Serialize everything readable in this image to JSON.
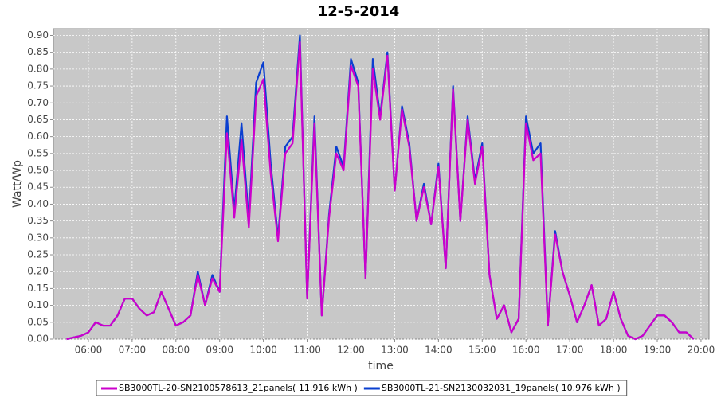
{
  "chart_data": {
    "type": "line",
    "title": "12-5-2014",
    "x_label": "time",
    "y_label": "Watt/Wp",
    "x": [
      "05:30",
      "05:40",
      "05:50",
      "06:00",
      "06:10",
      "06:20",
      "06:30",
      "06:40",
      "06:50",
      "07:00",
      "07:10",
      "07:20",
      "07:30",
      "07:40",
      "07:50",
      "08:00",
      "08:10",
      "08:20",
      "08:30",
      "08:40",
      "08:50",
      "09:00",
      "09:10",
      "09:20",
      "09:30",
      "09:40",
      "09:50",
      "10:00",
      "10:10",
      "10:20",
      "10:30",
      "10:40",
      "10:50",
      "11:00",
      "11:10",
      "11:20",
      "11:30",
      "11:40",
      "11:50",
      "12:00",
      "12:10",
      "12:20",
      "12:30",
      "12:40",
      "12:50",
      "13:00",
      "13:10",
      "13:20",
      "13:30",
      "13:40",
      "13:50",
      "14:00",
      "14:10",
      "14:20",
      "14:30",
      "14:40",
      "14:50",
      "15:00",
      "15:10",
      "15:20",
      "15:30",
      "15:40",
      "15:50",
      "16:00",
      "16:10",
      "16:20",
      "16:30",
      "16:40",
      "16:50",
      "17:00",
      "17:10",
      "17:20",
      "17:30",
      "17:40",
      "17:50",
      "18:00",
      "18:10",
      "18:20",
      "18:30",
      "18:40",
      "18:50",
      "19:00",
      "19:10",
      "19:20",
      "19:30",
      "19:40",
      "19:50"
    ],
    "series": [
      {
        "name": "SB3000TL-20-SN2100578613_21panels( 11.916 kWh )",
        "color": "#cc00cc",
        "values": [
          0,
          0.005,
          0.01,
          0.02,
          0.05,
          0.04,
          0.04,
          0.07,
          0.12,
          0.12,
          0.09,
          0.07,
          0.08,
          0.14,
          0.09,
          0.04,
          0.05,
          0.07,
          0.19,
          0.1,
          0.18,
          0.14,
          0.61,
          0.36,
          0.59,
          0.33,
          0.72,
          0.77,
          0.49,
          0.29,
          0.55,
          0.58,
          0.88,
          0.12,
          0.64,
          0.07,
          0.36,
          0.55,
          0.5,
          0.81,
          0.75,
          0.18,
          0.8,
          0.65,
          0.84,
          0.44,
          0.68,
          0.57,
          0.35,
          0.45,
          0.34,
          0.51,
          0.21,
          0.74,
          0.35,
          0.65,
          0.46,
          0.57,
          0.19,
          0.06,
          0.1,
          0.02,
          0.06,
          0.64,
          0.53,
          0.55,
          0.04,
          0.31,
          0.2,
          0.13,
          0.05,
          0.1,
          0.16,
          0.04,
          0.06,
          0.14,
          0.06,
          0.01,
          0,
          0.01,
          0.04,
          0.07,
          0.07,
          0.05,
          0.02,
          0.02,
          0
        ]
      },
      {
        "name": "SB3000TL-21-SN2130032031_19panels( 10.976 kWh )",
        "color": "#0a3fd0",
        "values": [
          0,
          0.005,
          0.01,
          0.02,
          0.05,
          0.04,
          0.04,
          0.07,
          0.12,
          0.12,
          0.09,
          0.07,
          0.08,
          0.14,
          0.09,
          0.04,
          0.05,
          0.07,
          0.2,
          0.1,
          0.19,
          0.14,
          0.66,
          0.38,
          0.64,
          0.35,
          0.76,
          0.82,
          0.52,
          0.3,
          0.57,
          0.6,
          0.9,
          0.12,
          0.66,
          0.07,
          0.37,
          0.57,
          0.51,
          0.83,
          0.76,
          0.18,
          0.83,
          0.66,
          0.85,
          0.44,
          0.69,
          0.58,
          0.35,
          0.46,
          0.34,
          0.52,
          0.21,
          0.75,
          0.35,
          0.66,
          0.47,
          0.58,
          0.19,
          0.06,
          0.1,
          0.02,
          0.06,
          0.66,
          0.55,
          0.58,
          0.04,
          0.32,
          0.2,
          0.13,
          0.05,
          0.1,
          0.16,
          0.04,
          0.06,
          0.14,
          0.06,
          0.01,
          0,
          0.01,
          0.04,
          0.07,
          0.07,
          0.05,
          0.02,
          0.02,
          0
        ]
      }
    ],
    "xlim": [
      "05:12",
      "20:11"
    ],
    "xticks": [
      "06:00",
      "07:00",
      "08:00",
      "09:00",
      "10:00",
      "11:00",
      "12:00",
      "13:00",
      "14:00",
      "15:00",
      "16:00",
      "17:00",
      "18:00",
      "19:00",
      "20:00"
    ],
    "ylim": [
      0,
      0.92
    ],
    "yticks": [
      {
        "value": 0,
        "label": "0.00"
      },
      {
        "value": 0.05,
        "label": "0.05"
      },
      {
        "value": 0.1,
        "label": "0.10"
      },
      {
        "value": 0.15,
        "label": "0.15"
      },
      {
        "value": 0.2,
        "label": "0.20"
      },
      {
        "value": 0.25,
        "label": "0.25"
      },
      {
        "value": 0.3,
        "label": "0.30"
      },
      {
        "value": 0.35,
        "label": "0.35"
      },
      {
        "value": 0.4,
        "label": "0.40"
      },
      {
        "value": 0.45,
        "label": "0.45"
      },
      {
        "value": 0.5,
        "label": "0.50"
      },
      {
        "value": 0.55,
        "label": "0.55"
      },
      {
        "value": 0.6,
        "label": "0.60"
      },
      {
        "value": 0.65,
        "label": "0.65"
      },
      {
        "value": 0.7,
        "label": "0.70"
      },
      {
        "value": 0.75,
        "label": "0.75"
      },
      {
        "value": 0.8,
        "label": "0.80"
      },
      {
        "value": 0.85,
        "label": "0.85"
      },
      {
        "value": 0.9,
        "label": "0.90"
      }
    ],
    "grid": true
  }
}
